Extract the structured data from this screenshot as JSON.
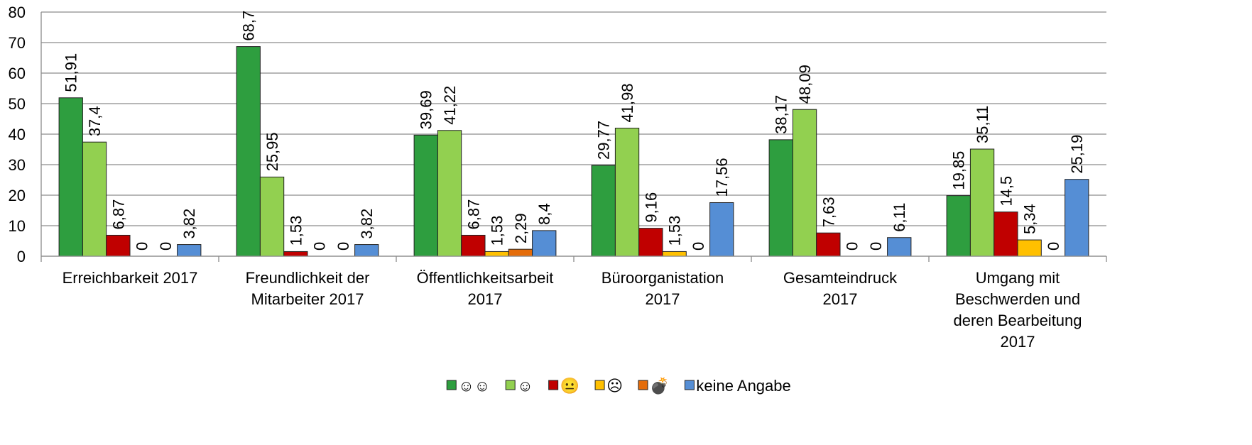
{
  "chart_data": {
    "type": "bar",
    "categories": [
      "Erreichbarkeit 2017",
      "Freundlichkeit der Mitarbeiter 2017",
      "Öffentlichkeitsarbeit 2017",
      "Büroorganistation 2017",
      "Gesamteindruck 2017",
      "Umgang mit Beschwerden und deren Bearbeitung 2017"
    ],
    "series": [
      {
        "name": "☺☺",
        "color": "#2e9e3f",
        "values": [
          51.91,
          68.7,
          39.69,
          29.77,
          38.17,
          19.85
        ],
        "value_labels": [
          "51,91",
          "68,7",
          "39,69",
          "29,77",
          "38,17",
          "19,85"
        ]
      },
      {
        "name": "☺",
        "color": "#92d050",
        "values": [
          37.4,
          25.95,
          41.22,
          41.98,
          48.09,
          35.11
        ],
        "value_labels": [
          "37,4",
          "25,95",
          "41,22",
          "41,98",
          "48,09",
          "35,11"
        ]
      },
      {
        "name": "😐",
        "color": "#c00000",
        "values": [
          6.87,
          1.53,
          6.87,
          9.16,
          7.63,
          14.5
        ],
        "value_labels": [
          "6,87",
          "1,53",
          "6,87",
          "9,16",
          "7,63",
          "14,5"
        ]
      },
      {
        "name": "☹",
        "color": "#ffc000",
        "values": [
          0,
          0,
          1.53,
          1.53,
          0,
          5.34
        ],
        "value_labels": [
          "0",
          "0",
          "1,53",
          "1,53",
          "0",
          "5,34"
        ]
      },
      {
        "name": "💣",
        "color": "#e46c0a",
        "values": [
          0,
          0,
          2.29,
          0,
          0,
          0
        ],
        "value_labels": [
          "0",
          "0",
          "2,29",
          "0",
          "0",
          "0"
        ]
      },
      {
        "name": "keine Angabe",
        "color": "#558ed5",
        "values": [
          3.82,
          3.82,
          8.4,
          17.56,
          6.11,
          25.19
        ],
        "value_labels": [
          "3,82",
          "3,82",
          "8,4",
          "17,56",
          "6,11",
          "25,19"
        ]
      }
    ],
    "ylim": [
      0,
      80
    ],
    "yticks": [
      0,
      10,
      20,
      30,
      40,
      50,
      60,
      70,
      80
    ],
    "grid": true,
    "legend": "bottom"
  }
}
